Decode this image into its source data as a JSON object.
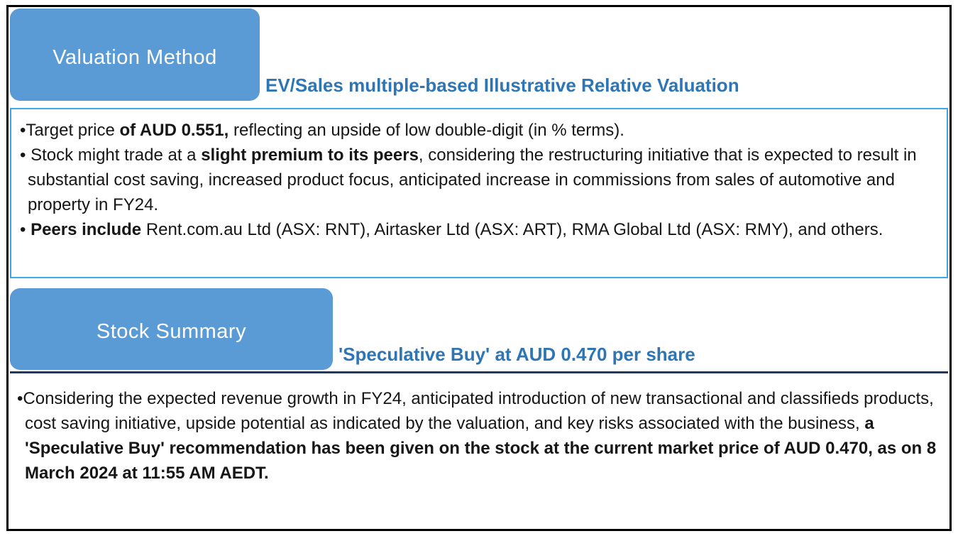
{
  "colors": {
    "tab_background": "#5B9BD5",
    "tab_text": "#FFFFFF",
    "heading_text": "#2E75B6",
    "bullet_box_border": "#41A8E8",
    "summary_divider": "#1F3864",
    "outer_border": "#000000",
    "body_text": "#161616"
  },
  "valuation_method": {
    "tab_label": "Valuation Method",
    "subtitle": "EV/Sales multiple-based Illustrative Relative Valuation",
    "bullets": [
      {
        "segments": [
          {
            "text": "•Target price ",
            "bold": false
          },
          {
            "text": "of AUD 0.551,",
            "bold": true
          },
          {
            "text": " reflecting an upside of low double-digit (in % terms).",
            "bold": false
          }
        ]
      },
      {
        "segments": [
          {
            "text": "• Stock might trade at a ",
            "bold": false
          },
          {
            "text": "slight premium to its peers",
            "bold": true
          },
          {
            "text": ", considering the restructuring initiative that is expected to result in substantial cost saving, increased product focus, anticipated increase in commissions from sales of automotive and property in FY24.",
            "bold": false
          }
        ]
      },
      {
        "segments": [
          {
            "text": "• ",
            "bold": false
          },
          {
            "text": "Peers include",
            "bold": true
          },
          {
            "text": " Rent.com.au Ltd (ASX: RNT), Airtasker Ltd (ASX: ART), RMA Global Ltd (ASX: RMY), and others.",
            "bold": false
          }
        ]
      }
    ]
  },
  "stock_summary": {
    "tab_label": "Stock Summary",
    "subtitle": "'Speculative Buy' at AUD 0.470 per share",
    "bullets": [
      {
        "segments": [
          {
            "text": "•Considering the expected revenue growth in FY24, anticipated introduction of new transactional and classifieds products, cost saving initiative, upside potential as indicated by the valuation, and key risks associated with the business, ",
            "bold": false
          },
          {
            "text": "a  'Speculative Buy' recommendation has been given on the stock at the current market price of AUD 0.470, as on 8 March 2024 at 11:55 AM AEDT.",
            "bold": true
          }
        ]
      }
    ]
  }
}
